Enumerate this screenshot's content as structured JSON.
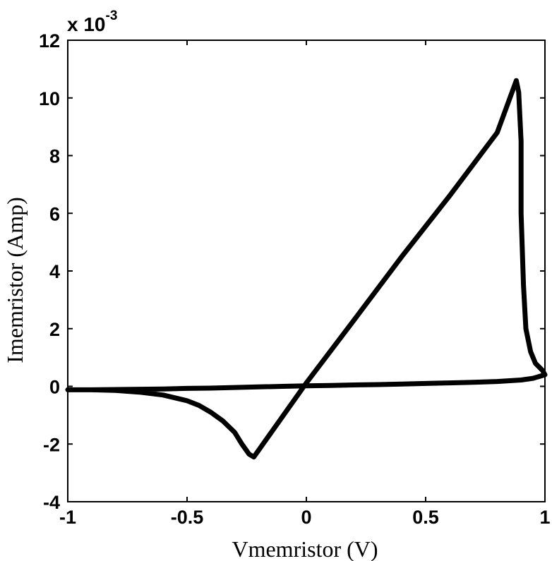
{
  "chart_data": {
    "type": "line",
    "title": "",
    "xlabel": "Vmemristor (V)",
    "ylabel": "Imemristor (Amp)",
    "xlim": [
      -1,
      1
    ],
    "ylim": [
      -4,
      12
    ],
    "y_multiplier": {
      "base": "x 10",
      "exponent": "-3"
    },
    "xticks": [
      -1,
      -0.5,
      0,
      0.5,
      1
    ],
    "xtick_labels": [
      "-1",
      "-0.5",
      "0",
      "0.5",
      "1"
    ],
    "yticks": [
      -4,
      -2,
      0,
      2,
      4,
      6,
      8,
      10,
      12
    ],
    "ytick_labels": [
      "-4",
      "-2",
      "0",
      "2",
      "4",
      "6",
      "8",
      "10",
      "12"
    ],
    "grid": false,
    "legend": "none",
    "line_color": "#000000",
    "series": [
      {
        "x": [
          -1.0,
          -0.9,
          -0.8,
          -0.7,
          -0.6,
          -0.5,
          -0.45,
          -0.4,
          -0.35,
          -0.3,
          -0.27,
          -0.24,
          -0.22,
          0.0,
          0.2,
          0.4,
          0.6,
          0.8,
          0.88,
          0.89,
          0.9,
          0.9,
          0.91,
          0.92,
          0.94,
          0.96,
          0.99,
          1.0,
          0.95,
          0.9,
          0.8,
          0.7,
          0.6,
          0.5,
          0.4,
          0.3,
          0.2,
          0.1,
          0.0,
          -0.1,
          -0.2,
          -0.3,
          -0.4,
          -0.5,
          -0.6,
          -0.7,
          -0.8,
          -0.9,
          -1.0
        ],
        "y": [
          -0.12,
          -0.12,
          -0.14,
          -0.2,
          -0.3,
          -0.5,
          -0.66,
          -0.9,
          -1.2,
          -1.6,
          -2.0,
          -2.35,
          -2.45,
          0.12,
          2.3,
          4.5,
          6.6,
          8.8,
          10.6,
          10.2,
          8.5,
          6.0,
          3.5,
          2.0,
          1.2,
          0.8,
          0.55,
          0.4,
          0.28,
          0.22,
          0.17,
          0.14,
          0.12,
          0.1,
          0.08,
          0.06,
          0.05,
          0.03,
          0.02,
          0.0,
          -0.02,
          -0.04,
          -0.06,
          -0.07,
          -0.09,
          -0.1,
          -0.11,
          -0.12,
          -0.12
        ]
      }
    ]
  }
}
